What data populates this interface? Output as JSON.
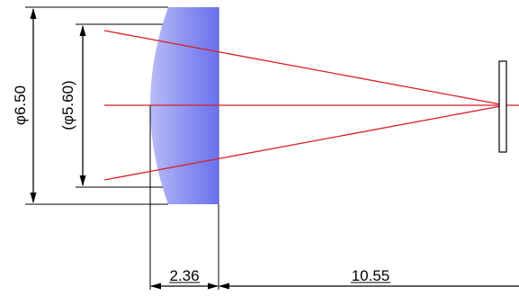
{
  "dimensions": {
    "outer_diameter": "φ6.50",
    "clear_aperture": "(φ5.60)",
    "lens_thickness": "2.36",
    "focal_distance": "10.55"
  },
  "colors": {
    "lens_fill": "#7c83f0",
    "ray": "#d81f26",
    "line": "#000000"
  }
}
